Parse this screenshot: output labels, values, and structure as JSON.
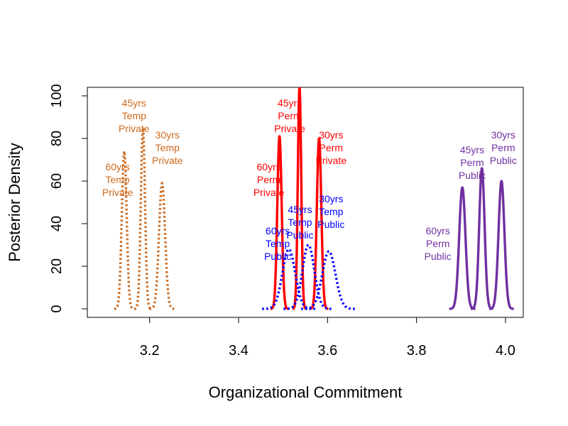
{
  "chart_data": {
    "type": "line",
    "title": "",
    "xlabel": "Organizational Commitment",
    "ylabel": "Posterior Density",
    "xlim": [
      3.06,
      4.04
    ],
    "ylim": [
      -4,
      104
    ],
    "xticks": [
      "3.2",
      "3.4",
      "3.6",
      "3.8",
      "4.0"
    ],
    "yticks": [
      "0",
      "20",
      "40",
      "60",
      "80",
      "100"
    ],
    "grid": false,
    "legend": "none",
    "series": [
      {
        "color": "#CC6A1E",
        "style": "dotted",
        "mean": 3.143,
        "peak": 74,
        "sd": 0.0054,
        "label": [
          "60yrs",
          "Temp",
          "Private"
        ],
        "label_x": 3.128,
        "label_y": 59
      },
      {
        "color": "#CC6A1E",
        "style": "dotted",
        "mean": 3.185,
        "peak": 85,
        "sd": 0.0047,
        "label": [
          "45yrs",
          "Temp",
          "Private"
        ],
        "label_x": 3.165,
        "label_y": 89
      },
      {
        "color": "#CC6A1E",
        "style": "dotted",
        "mean": 3.228,
        "peak": 59,
        "sd": 0.0068,
        "label": [
          "30yrs",
          "Temp",
          "Private"
        ],
        "label_x": 3.24,
        "label_y": 74
      },
      {
        "color": "#FF0000",
        "style": "solid",
        "mean": 3.492,
        "peak": 81,
        "sd": 0.0049,
        "label": [
          "60yrs",
          "Perm",
          "Private"
        ],
        "label_x": 3.468,
        "label_y": 59
      },
      {
        "color": "#FF0000",
        "style": "solid",
        "mean": 3.537,
        "peak": 104,
        "sd": 0.0038,
        "label": [
          "45yrs",
          "Perm",
          "Private"
        ],
        "label_x": 3.515,
        "label_y": 89
      },
      {
        "color": "#FF0000",
        "style": "solid",
        "mean": 3.581,
        "peak": 80,
        "sd": 0.005,
        "label": [
          "30yrs",
          "Perm",
          "Private"
        ],
        "label_x": 3.608,
        "label_y": 74
      },
      {
        "color": "#0000FF",
        "style": "dotted",
        "mean": 3.513,
        "peak": 28,
        "sd": 0.0143,
        "label": [
          "60yrs",
          "Temp",
          "Public"
        ],
        "label_x": 3.488,
        "label_y": 29
      },
      {
        "color": "#0000FF",
        "style": "dotted",
        "mean": 3.557,
        "peak": 30,
        "sd": 0.0133,
        "label": [
          "45yrs",
          "Temp",
          "Public"
        ],
        "label_x": 3.538,
        "label_y": 39
      },
      {
        "color": "#0000FF",
        "style": "dotted",
        "mean": 3.603,
        "peak": 27,
        "sd": 0.0148,
        "label": [
          "30yrs",
          "Temp",
          "Public"
        ],
        "label_x": 3.608,
        "label_y": 44
      },
      {
        "color": "#7030A0",
        "style": "solid",
        "mean": 3.903,
        "peak": 57,
        "sd": 0.007,
        "label": [
          "60yrs",
          "Perm",
          "Public"
        ],
        "label_x": 3.848,
        "label_y": 29
      },
      {
        "color": "#7030A0",
        "style": "solid",
        "mean": 3.947,
        "peak": 66,
        "sd": 0.006,
        "label": [
          "45yrs",
          "Perm",
          "Public"
        ],
        "label_x": 3.925,
        "label_y": 67
      },
      {
        "color": "#7030A0",
        "style": "solid",
        "mean": 3.991,
        "peak": 60,
        "sd": 0.0066,
        "label": [
          "30yrs",
          "Perm",
          "Public"
        ],
        "label_x": 3.995,
        "label_y": 74
      }
    ]
  }
}
